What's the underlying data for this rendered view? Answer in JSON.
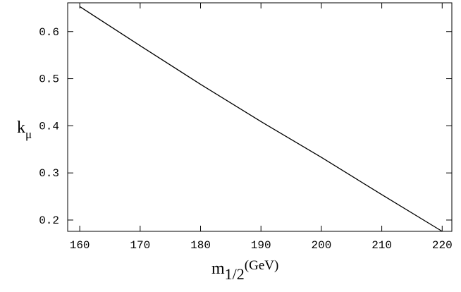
{
  "chart_data": {
    "type": "line",
    "x_label": {
      "main": "m",
      "sub": "1/2",
      "suffix": "(GeV)"
    },
    "y_label": {
      "main": "k",
      "sub": "μ"
    },
    "x": [
      160,
      170,
      180,
      190,
      200,
      210,
      220
    ],
    "series": [
      {
        "color": "#000000",
        "values": [
          0.653,
          0.57,
          0.488,
          0.409,
          0.333,
          0.254,
          0.176
        ]
      }
    ],
    "xlim": [
      158,
      221.6
    ],
    "xticks": [
      160,
      170,
      180,
      190,
      200,
      210,
      220
    ],
    "ylim": [
      0.176,
      0.661
    ],
    "yticks": [
      0.2,
      0.3,
      0.4,
      0.5,
      0.6
    ]
  }
}
